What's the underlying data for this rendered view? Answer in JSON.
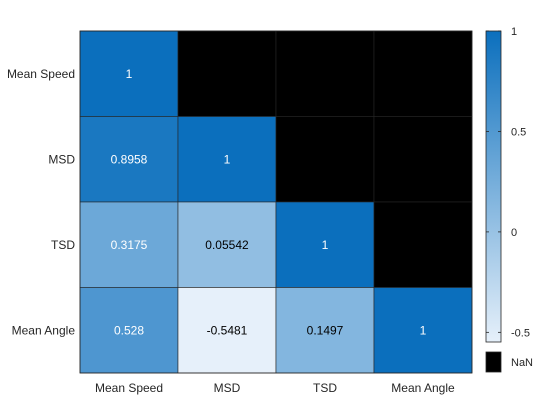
{
  "chart_data": {
    "type": "heatmap",
    "title": "",
    "xlabel": "",
    "ylabel": "",
    "x_labels": [
      "Mean Speed",
      "MSD",
      "TSD",
      "Mean Angle"
    ],
    "y_labels": [
      "Mean Speed",
      "MSD",
      "TSD",
      "Mean Angle"
    ],
    "values": [
      [
        1,
        null,
        null,
        null
      ],
      [
        0.8958,
        1,
        null,
        null
      ],
      [
        0.3175,
        0.05542,
        1,
        null
      ],
      [
        0.528,
        -0.5481,
        0.1497,
        1
      ]
    ],
    "cell_labels": [
      [
        "1",
        "",
        "",
        ""
      ],
      [
        "0.8958",
        "1",
        "",
        ""
      ],
      [
        "0.3175",
        "0.05542",
        "1",
        ""
      ],
      [
        "0.528",
        "-0.5481",
        "0.1497",
        "1"
      ]
    ],
    "colorbar": {
      "range": [
        -0.5481,
        1
      ],
      "ticks": [
        1,
        0.5,
        0,
        -0.5
      ],
      "tick_labels": [
        "1",
        "0.5",
        "0",
        "-0.5"
      ],
      "color_low": "#e6f0fa",
      "color_high": "#0b6fbd"
    },
    "missing": {
      "label": "NaN",
      "color": "#000000"
    },
    "grid": true,
    "legend": "right"
  }
}
